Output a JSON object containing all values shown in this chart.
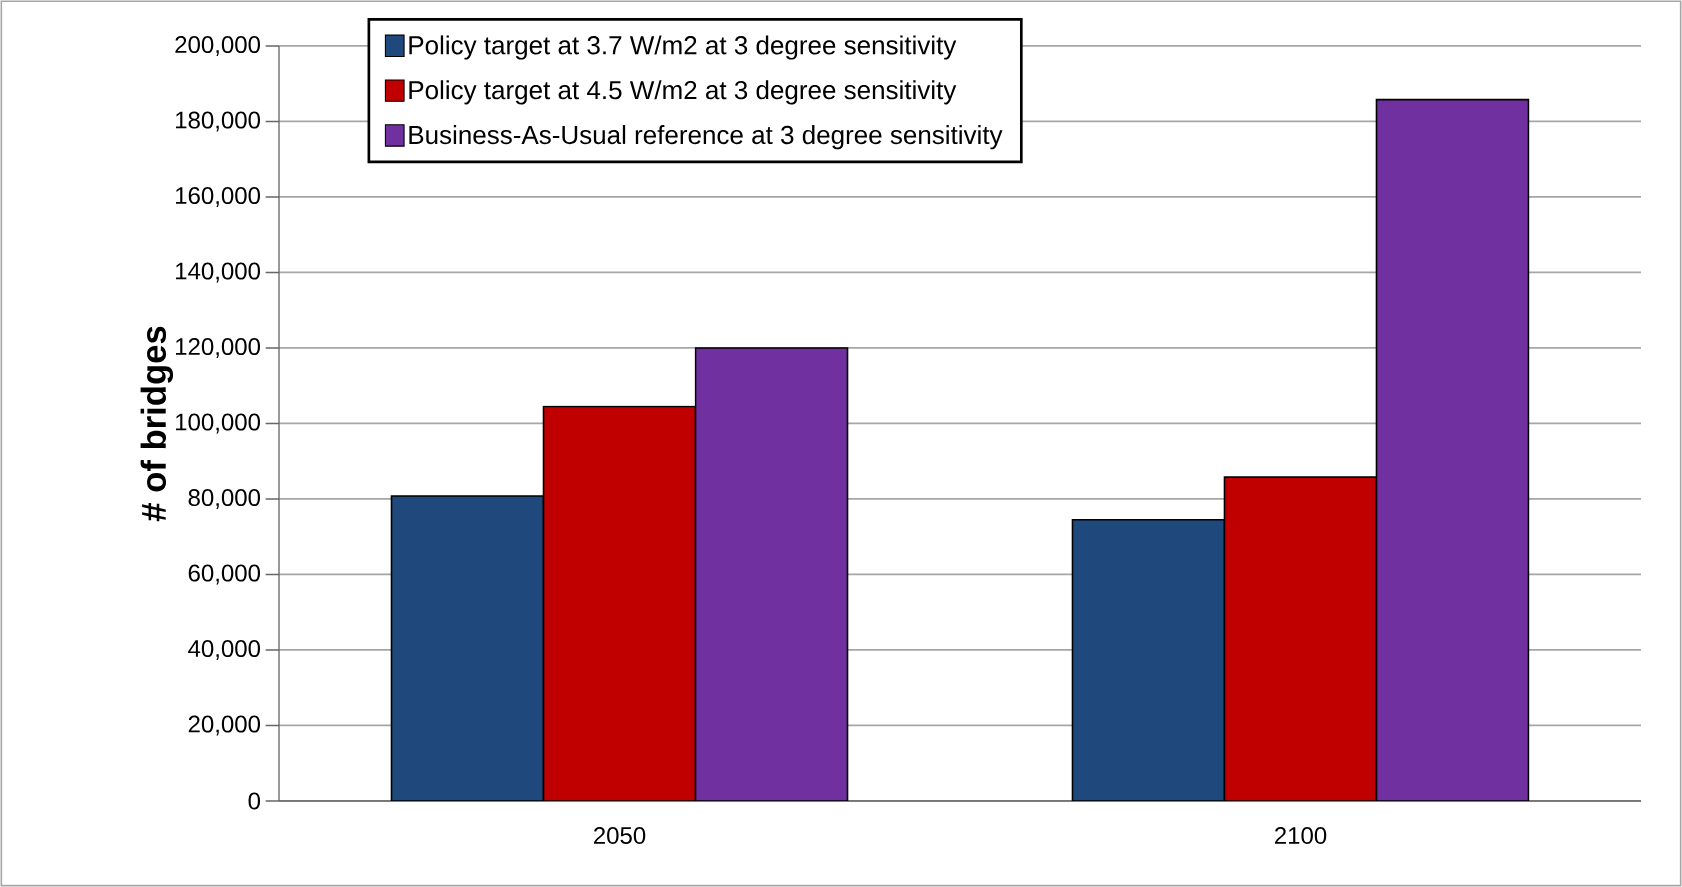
{
  "chart_data": {
    "type": "bar",
    "ylabel": "# of bridges",
    "categories": [
      "2050",
      "2100"
    ],
    "series": [
      {
        "name": "Policy target at 3.7 W/m2 at 3 degree sensitivity",
        "color": "#1f497d",
        "values": [
          80800,
          74500
        ]
      },
      {
        "name": "Policy target at 4.5 W/m2 at 3 degree sensitivity",
        "color": "#c00000",
        "values": [
          104500,
          85800
        ]
      },
      {
        "name": "Business-As-Usual reference at 3 degree sensitivity",
        "color": "#7030a0",
        "values": [
          120000,
          185800
        ]
      }
    ],
    "ylim": [
      0,
      200000
    ],
    "yticks": [
      {
        "value": 0,
        "label": "0"
      },
      {
        "value": 20000,
        "label": "20,000"
      },
      {
        "value": 40000,
        "label": "40,000"
      },
      {
        "value": 60000,
        "label": "60,000"
      },
      {
        "value": 80000,
        "label": "80,000"
      },
      {
        "value": 100000,
        "label": "100,000"
      },
      {
        "value": 120000,
        "label": "120,000"
      },
      {
        "value": 140000,
        "label": "140,000"
      },
      {
        "value": 160000,
        "label": "160,000"
      },
      {
        "value": 180000,
        "label": "180,000"
      },
      {
        "value": 200000,
        "label": "200,000"
      }
    ],
    "grid": "y",
    "legend": "top left"
  }
}
